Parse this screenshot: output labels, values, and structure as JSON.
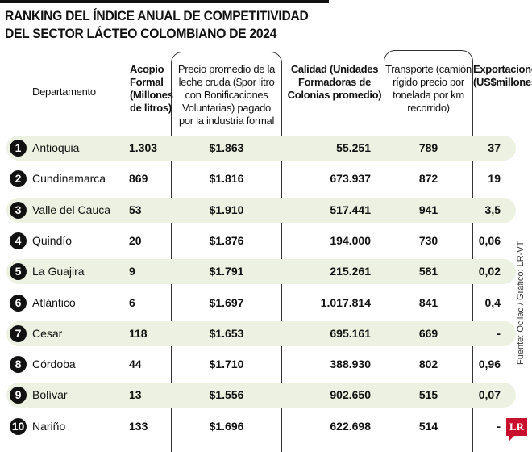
{
  "title": [
    "RANKING DEL ÍNDICE ANUAL DE COMPETITIVIDAD",
    "DEL SECTOR LÁCTEO COLOMBIANO DE 2024"
  ],
  "headers": {
    "departamento": "Departamento",
    "acopio": [
      "Acopio",
      "Formal",
      "(Millones",
      "de litros)"
    ],
    "precio": [
      "Precio promedio de la",
      "leche cruda ($por litro",
      "con Bonificaciones",
      "Voluntarias) pagado",
      "por la industria formal"
    ],
    "calidad": [
      "Calidad (Unidades",
      "Formadoras de",
      "Colonias promedio)"
    ],
    "transporte": [
      "Transporte (camión",
      "rígido precio por",
      "tonelada por km",
      "recorrido)"
    ],
    "exportaciones": [
      "Exportaciones",
      "(US$millones)"
    ]
  },
  "rows": [
    {
      "rank": "1",
      "dept": "Antioquia",
      "acopio": "1.303",
      "precio": "$1.863",
      "calidad": "55.251",
      "transporte": "789",
      "export": "37"
    },
    {
      "rank": "2",
      "dept": "Cundinamarca",
      "acopio": "869",
      "precio": "$1.816",
      "calidad": "673.937",
      "transporte": "872",
      "export": "19"
    },
    {
      "rank": "3",
      "dept": "Valle del Cauca",
      "acopio": "53",
      "precio": "$1.910",
      "calidad": "517.441",
      "transporte": "941",
      "export": "3,5"
    },
    {
      "rank": "4",
      "dept": "Quindío",
      "acopio": "20",
      "precio": "$1.876",
      "calidad": "194.000",
      "transporte": "730",
      "export": "0,06"
    },
    {
      "rank": "5",
      "dept": "La Guajira",
      "acopio": "9",
      "precio": "$1.791",
      "calidad": "215.261",
      "transporte": "581",
      "export": "0,02"
    },
    {
      "rank": "6",
      "dept": "Atlántico",
      "acopio": "6",
      "precio": "$1.697",
      "calidad": "1.017.814",
      "transporte": "841",
      "export": "0,4"
    },
    {
      "rank": "7",
      "dept": "Cesar",
      "acopio": "118",
      "precio": "$1.653",
      "calidad": "695.161",
      "transporte": "669",
      "export": "-"
    },
    {
      "rank": "8",
      "dept": "Córdoba",
      "acopio": "44",
      "precio": "$1.710",
      "calidad": "388.930",
      "transporte": "802",
      "export": "0,96"
    },
    {
      "rank": "9",
      "dept": "Bolívar",
      "acopio": "13",
      "precio": "$1.556",
      "calidad": "902.650",
      "transporte": "515",
      "export": "0,07"
    },
    {
      "rank": "10",
      "dept": "Nariño",
      "acopio": "133",
      "precio": "$1.696",
      "calidad": "622.698",
      "transporte": "514",
      "export": "-"
    }
  ],
  "source": "Fuente: Ocilac / Gráfico: LR-VT",
  "logo": "LR",
  "colors": {
    "shade": "#edf1e1",
    "logo": "#c8102e"
  }
}
